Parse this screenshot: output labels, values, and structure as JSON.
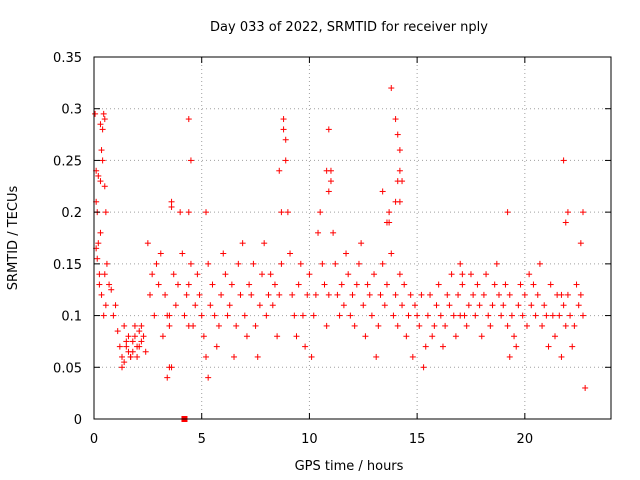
{
  "chart_data": {
    "type": "scatter",
    "title": "Day 033 of 2022, SRMTID for receiver nply",
    "xlabel": "GPS time / hours",
    "ylabel": "SRMTID / TECUs",
    "xlim": [
      0,
      24
    ],
    "ylim": [
      0,
      0.35
    ],
    "xticks": [
      0,
      5,
      10,
      15,
      20
    ],
    "xtick_labels": [
      "0",
      "5",
      "10",
      "15",
      "20"
    ],
    "yticks": [
      0,
      0.05,
      0.1,
      0.15,
      0.2,
      0.25,
      0.3,
      0.35
    ],
    "ytick_labels": [
      "0",
      "0.05",
      "0.1",
      "0.15",
      "0.2",
      "0.25",
      "0.3",
      "0.35"
    ],
    "grid": true,
    "marker": "+",
    "color": "#ff0000",
    "series": [
      {
        "name": "SRMTID",
        "description_of_density": "dense scatter of + markers, mostly 0.05-0.15 TECU",
        "x": [
          0.05,
          0.1,
          0.15,
          0.2,
          0.25,
          0.3,
          0.35,
          0.4,
          0.45,
          0.5,
          0.55,
          0.6,
          0.1,
          0.2,
          0.3,
          0.4,
          0.5,
          0.15,
          0.25,
          0.35,
          0.45,
          0.55,
          0.1,
          0.3,
          0.5,
          0.7,
          0.8,
          0.9,
          1.0,
          1.1,
          1.2,
          1.3,
          1.4,
          1.5,
          1.6,
          1.7,
          1.8,
          1.9,
          2.0,
          2.1,
          2.2,
          2.3,
          2.4,
          1.3,
          1.5,
          1.7,
          1.9,
          2.1,
          1.4,
          1.6,
          1.8,
          2.0,
          2.2,
          2.5,
          2.6,
          2.7,
          2.8,
          2.9,
          3.0,
          3.1,
          3.2,
          3.3,
          3.4,
          3.5,
          3.6,
          3.7,
          3.8,
          3.9,
          4.0,
          4.1,
          4.2,
          4.3,
          4.4,
          4.5,
          4.6,
          4.7,
          4.8,
          4.9,
          5.0,
          5.1,
          5.2,
          5.3,
          5.4,
          5.5,
          5.6,
          5.7,
          5.8,
          5.9,
          6.0,
          6.1,
          6.2,
          6.3,
          6.4,
          6.5,
          6.6,
          6.7,
          6.8,
          6.9,
          7.0,
          7.1,
          7.2,
          7.3,
          7.4,
          7.5,
          7.6,
          7.7,
          7.8,
          7.9,
          8.0,
          8.1,
          8.2,
          8.3,
          8.4,
          8.5,
          8.6,
          8.7,
          8.8,
          8.9,
          9.0,
          9.1,
          9.2,
          9.3,
          9.4,
          9.5,
          9.6,
          9.7,
          9.8,
          9.9,
          10.0,
          10.1,
          10.2,
          10.3,
          10.4,
          10.5,
          10.6,
          10.7,
          10.8,
          10.9,
          11.0,
          11.1,
          11.2,
          11.3,
          11.4,
          11.5,
          11.6,
          11.7,
          11.8,
          11.9,
          12.0,
          12.1,
          12.2,
          12.3,
          12.4,
          12.5,
          12.6,
          12.7,
          12.8,
          12.9,
          13.0,
          13.1,
          13.2,
          13.3,
          13.4,
          13.5,
          13.6,
          13.7,
          13.8,
          13.9,
          14.0,
          14.1,
          14.2,
          14.3,
          14.4,
          14.5,
          14.6,
          14.7,
          14.8,
          14.9,
          15.0,
          15.1,
          15.2,
          15.3,
          15.4,
          15.5,
          15.6,
          15.7,
          15.8,
          15.9,
          16.0,
          16.1,
          16.2,
          16.3,
          16.4,
          16.5,
          16.6,
          16.7,
          16.8,
          16.9,
          17.0,
          17.1,
          17.2,
          17.3,
          17.4,
          17.5,
          17.6,
          17.7,
          17.8,
          17.9,
          18.0,
          18.1,
          18.2,
          18.3,
          18.4,
          18.5,
          18.6,
          18.7,
          18.8,
          18.9,
          19.0,
          19.1,
          19.2,
          19.3,
          19.4,
          19.5,
          19.6,
          19.7,
          19.8,
          19.9,
          20.0,
          20.1,
          20.2,
          20.3,
          20.4,
          20.5,
          20.6,
          20.7,
          20.8,
          20.9,
          21.0,
          21.1,
          21.2,
          21.3,
          21.4,
          21.5,
          21.6,
          21.7,
          21.8,
          21.9,
          22.0,
          22.1,
          22.2,
          22.3,
          22.4,
          22.5,
          22.6,
          22.7,
          22.8,
          3.4,
          3.5,
          3.5,
          3.6,
          3.6,
          4.4,
          4.4,
          4.4,
          4.5,
          8.6,
          8.7,
          8.8,
          8.9,
          10.8,
          10.9,
          10.9,
          11.0,
          13.4,
          13.6,
          13.7,
          13.8,
          14.0,
          14.1,
          14.2,
          14.2,
          14.3,
          14.0,
          14.1,
          14.2,
          21.8,
          21.9,
          22.0,
          21.7,
          22.6,
          22.7,
          19.2,
          19.3,
          17.0,
          17.1,
          5.2,
          5.3
        ],
        "y": [
          0.295,
          0.24,
          0.2,
          0.17,
          0.14,
          0.23,
          0.26,
          0.28,
          0.295,
          0.29,
          0.2,
          0.15,
          0.21,
          0.235,
          0.18,
          0.25,
          0.14,
          0.155,
          0.13,
          0.12,
          0.1,
          0.11,
          0.165,
          0.285,
          0.225,
          0.13,
          0.125,
          0.1,
          0.11,
          0.085,
          0.07,
          0.06,
          0.055,
          0.075,
          0.08,
          0.06,
          0.065,
          0.09,
          0.07,
          0.085,
          0.075,
          0.08,
          0.065,
          0.05,
          0.07,
          0.06,
          0.08,
          0.07,
          0.09,
          0.065,
          0.075,
          0.06,
          0.09,
          0.17,
          0.12,
          0.14,
          0.1,
          0.15,
          0.13,
          0.16,
          0.08,
          0.12,
          0.1,
          0.09,
          0.05,
          0.14,
          0.11,
          0.13,
          0.2,
          0.16,
          0.1,
          0.12,
          0.13,
          0.15,
          0.09,
          0.11,
          0.14,
          0.12,
          0.1,
          0.08,
          0.2,
          0.15,
          0.11,
          0.13,
          0.1,
          0.07,
          0.09,
          0.12,
          0.16,
          0.14,
          0.1,
          0.11,
          0.13,
          0.06,
          0.09,
          0.15,
          0.12,
          0.17,
          0.1,
          0.08,
          0.13,
          0.12,
          0.15,
          0.09,
          0.06,
          0.11,
          0.14,
          0.17,
          0.1,
          0.12,
          0.14,
          0.11,
          0.13,
          0.08,
          0.12,
          0.15,
          0.29,
          0.25,
          0.2,
          0.16,
          0.12,
          0.1,
          0.08,
          0.13,
          0.15,
          0.1,
          0.07,
          0.12,
          0.14,
          0.06,
          0.1,
          0.12,
          0.18,
          0.2,
          0.15,
          0.13,
          0.09,
          0.12,
          0.24,
          0.18,
          0.15,
          0.12,
          0.1,
          0.13,
          0.11,
          0.16,
          0.14,
          0.1,
          0.12,
          0.09,
          0.13,
          0.15,
          0.17,
          0.11,
          0.08,
          0.13,
          0.12,
          0.1,
          0.14,
          0.06,
          0.09,
          0.12,
          0.15,
          0.11,
          0.13,
          0.19,
          0.16,
          0.1,
          0.12,
          0.09,
          0.14,
          0.11,
          0.13,
          0.08,
          0.1,
          0.12,
          0.06,
          0.11,
          0.1,
          0.09,
          0.12,
          0.05,
          0.07,
          0.1,
          0.12,
          0.08,
          0.09,
          0.11,
          0.13,
          0.1,
          0.07,
          0.09,
          0.12,
          0.11,
          0.14,
          0.1,
          0.08,
          0.12,
          0.15,
          0.13,
          0.1,
          0.09,
          0.11,
          0.14,
          0.12,
          0.1,
          0.13,
          0.11,
          0.08,
          0.12,
          0.14,
          0.1,
          0.09,
          0.11,
          0.13,
          0.15,
          0.12,
          0.1,
          0.11,
          0.13,
          0.09,
          0.12,
          0.1,
          0.08,
          0.07,
          0.11,
          0.13,
          0.1,
          0.12,
          0.09,
          0.14,
          0.11,
          0.13,
          0.1,
          0.12,
          0.15,
          0.09,
          0.11,
          0.1,
          0.07,
          0.13,
          0.1,
          0.08,
          0.12,
          0.1,
          0.06,
          0.11,
          0.09,
          0.12,
          0.1,
          0.07,
          0.09,
          0.13,
          0.11,
          0.12,
          0.1,
          0.03,
          0.04,
          0.05,
          0.1,
          0.205,
          0.21,
          0.2,
          0.09,
          0.29,
          0.25,
          0.24,
          0.2,
          0.28,
          0.27,
          0.24,
          0.22,
          0.28,
          0.23,
          0.22,
          0.19,
          0.2,
          0.32,
          0.29,
          0.275,
          0.24,
          0.26,
          0.23,
          0.21,
          0.23,
          0.21,
          0.25,
          0.19,
          0.2,
          0.12,
          0.17,
          0.2,
          0.2,
          0.06,
          0.1,
          0.14,
          0.06,
          0.04
        ]
      }
    ],
    "special_mark": {
      "x": 4.2,
      "y": 0,
      "shape": "square"
    }
  }
}
